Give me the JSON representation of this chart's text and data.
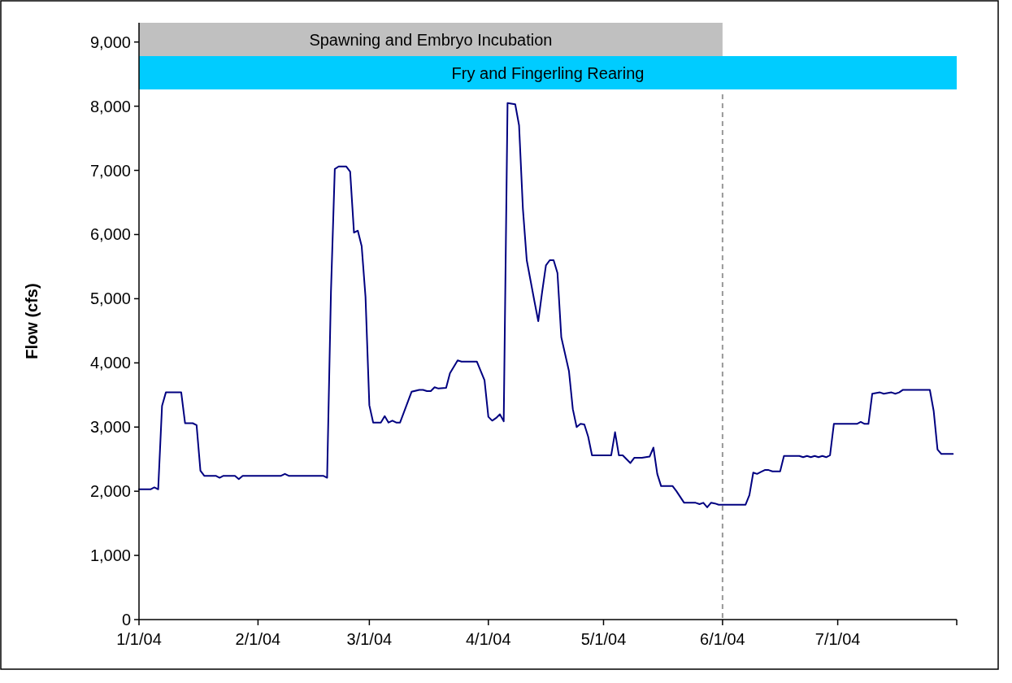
{
  "chart_data": {
    "type": "line",
    "ylabel": "Flow (cfs)",
    "xlim": [
      "2004-01-01",
      "2004-08-01"
    ],
    "xticks": [
      {
        "value": "2004-01-01",
        "label": "1/1/04"
      },
      {
        "value": "2004-02-01",
        "label": "2/1/04"
      },
      {
        "value": "2004-03-01",
        "label": "3/1/04"
      },
      {
        "value": "2004-04-01",
        "label": "4/1/04"
      },
      {
        "value": "2004-05-01",
        "label": "5/1/04"
      },
      {
        "value": "2004-06-01",
        "label": "6/1/04"
      },
      {
        "value": "2004-07-01",
        "label": "7/1/04"
      },
      {
        "value": "2004-08-01",
        "label": null
      }
    ],
    "ylim": [
      0,
      9300
    ],
    "yticks": [
      {
        "value": 0,
        "label": "0"
      },
      {
        "value": 1000,
        "label": "1,000"
      },
      {
        "value": 2000,
        "label": "2,000"
      },
      {
        "value": 3000,
        "label": "3,000"
      },
      {
        "value": 4000,
        "label": "4,000"
      },
      {
        "value": 5000,
        "label": "5,000"
      },
      {
        "value": 6000,
        "label": "6,000"
      },
      {
        "value": 7000,
        "label": "7,000"
      },
      {
        "value": 8000,
        "label": "8,000"
      },
      {
        "value": 9000,
        "label": "9,000"
      }
    ],
    "grid": false,
    "marker": "none",
    "line_style": "solid",
    "bands": [
      {
        "axis": "x",
        "from": "2004-01-01",
        "to": "2004-06-01",
        "label": "Spawning and Embryo Incubation",
        "color": "#c0c0c0"
      },
      {
        "axis": "x",
        "from": "2004-01-01",
        "to": "2004-08-01",
        "label": "Fry and Fingerling Rearing",
        "color": "#00ccff"
      }
    ],
    "ref_lines": [
      {
        "axis": "x",
        "value": "2004-06-01",
        "color": "#999999",
        "line_style": "dashed"
      }
    ],
    "series": [
      {
        "color": "#000080",
        "x": [
          "2004-01-01",
          "2004-01-04",
          "2004-01-05",
          "2004-01-06",
          "2004-01-07",
          "2004-01-08",
          "2004-01-12",
          "2004-01-13",
          "2004-01-15",
          "2004-01-16",
          "2004-01-17",
          "2004-01-18",
          "2004-01-21",
          "2004-01-22",
          "2004-01-23",
          "2004-01-26",
          "2004-01-27",
          "2004-01-28",
          "2004-02-07",
          "2004-02-08",
          "2004-02-09",
          "2004-02-18",
          "2004-02-19",
          "2004-02-20",
          "2004-02-21",
          "2004-02-22",
          "2004-02-24",
          "2004-02-25",
          "2004-02-26",
          "2004-02-27",
          "2004-02-28",
          "2004-02-29",
          "2004-03-01",
          "2004-03-02",
          "2004-03-04",
          "2004-03-05",
          "2004-03-06",
          "2004-03-07",
          "2004-03-08",
          "2004-03-09",
          "2004-03-12",
          "2004-03-14",
          "2004-03-15",
          "2004-03-16",
          "2004-03-17",
          "2004-03-18",
          "2004-03-19",
          "2004-03-21",
          "2004-03-22",
          "2004-03-24",
          "2004-03-25",
          "2004-03-29",
          "2004-03-31",
          "2004-04-01",
          "2004-04-02",
          "2004-04-03",
          "2004-04-04",
          "2004-04-05",
          "2004-04-06",
          "2004-04-08",
          "2004-04-09",
          "2004-04-10",
          "2004-04-11",
          "2004-04-13",
          "2004-04-14",
          "2004-04-15",
          "2004-04-16",
          "2004-04-17",
          "2004-04-18",
          "2004-04-19",
          "2004-04-20",
          "2004-04-22",
          "2004-04-23",
          "2004-04-24",
          "2004-04-25",
          "2004-04-26",
          "2004-04-27",
          "2004-04-28",
          "2004-04-29",
          "2004-04-30",
          "2004-05-03",
          "2004-05-04",
          "2004-05-05",
          "2004-05-06",
          "2004-05-08",
          "2004-05-09",
          "2004-05-11",
          "2004-05-13",
          "2004-05-14",
          "2004-05-15",
          "2004-05-16",
          "2004-05-19",
          "2004-05-20",
          "2004-05-22",
          "2004-05-25",
          "2004-05-26",
          "2004-05-27",
          "2004-05-28",
          "2004-05-29",
          "2004-05-30",
          "2004-05-31",
          "2004-06-07",
          "2004-06-08",
          "2004-06-09",
          "2004-06-10",
          "2004-06-11",
          "2004-06-12",
          "2004-06-13",
          "2004-06-14",
          "2004-06-16",
          "2004-06-17",
          "2004-06-21",
          "2004-06-22",
          "2004-06-23",
          "2004-06-24",
          "2004-06-25",
          "2004-06-26",
          "2004-06-27",
          "2004-06-28",
          "2004-06-29",
          "2004-06-30",
          "2004-07-06",
          "2004-07-07",
          "2004-07-08",
          "2004-07-09",
          "2004-07-10",
          "2004-07-12",
          "2004-07-13",
          "2004-07-15",
          "2004-07-16",
          "2004-07-17",
          "2004-07-18",
          "2004-07-25",
          "2004-07-26",
          "2004-07-27",
          "2004-07-28",
          "2004-07-31"
        ],
        "values": [
          2030,
          2030,
          2060,
          2030,
          3330,
          3540,
          3540,
          3060,
          3060,
          3030,
          2320,
          2240,
          2240,
          2210,
          2240,
          2240,
          2190,
          2240,
          2240,
          2270,
          2240,
          2240,
          2210,
          5100,
          7020,
          7060,
          7060,
          6980,
          6030,
          6060,
          5820,
          5030,
          3340,
          3070,
          3070,
          3170,
          3070,
          3100,
          3070,
          3070,
          3550,
          3580,
          3580,
          3560,
          3560,
          3620,
          3600,
          3610,
          3840,
          4040,
          4020,
          4020,
          3730,
          3160,
          3100,
          3140,
          3200,
          3090,
          8050,
          8030,
          7700,
          6400,
          5600,
          4960,
          4650,
          5100,
          5520,
          5600,
          5600,
          5400,
          4400,
          3870,
          3280,
          3000,
          3050,
          3040,
          2850,
          2560,
          2560,
          2560,
          2560,
          2920,
          2560,
          2560,
          2440,
          2520,
          2520,
          2540,
          2680,
          2270,
          2080,
          2080,
          2000,
          1820,
          1820,
          1800,
          1820,
          1750,
          1820,
          1810,
          1790,
          1790,
          1940,
          2290,
          2270,
          2300,
          2330,
          2330,
          2310,
          2310,
          2550,
          2550,
          2530,
          2550,
          2530,
          2550,
          2530,
          2550,
          2530,
          2560,
          3050,
          3050,
          3080,
          3050,
          3050,
          3520,
          3540,
          3520,
          3540,
          3520,
          3540,
          3580,
          3580,
          3250,
          2650,
          2580,
          2580
        ]
      }
    ]
  }
}
